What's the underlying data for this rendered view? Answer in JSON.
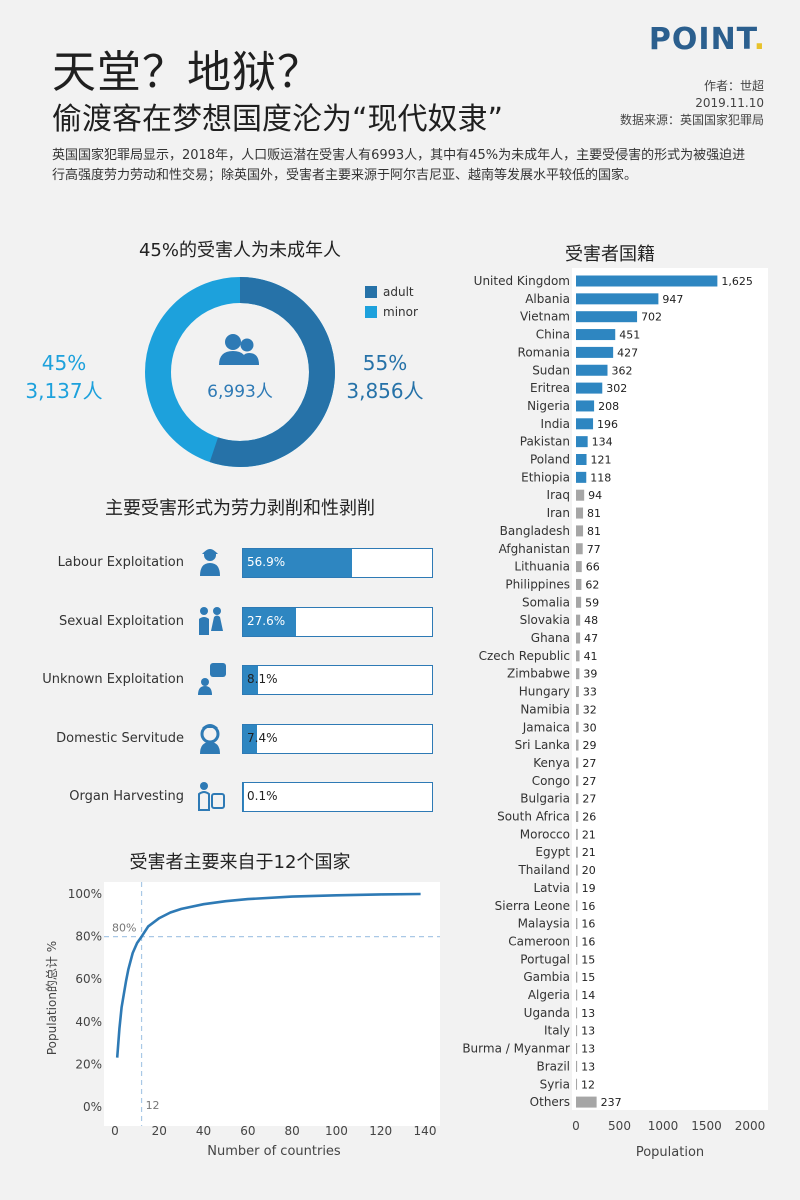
{
  "header": {
    "title": "天堂？地狱？",
    "subtitle": "偷渡客在梦想国度沦为“现代奴隶”",
    "logo": "POINT",
    "logo_dot": ".",
    "author": "作者：世超",
    "date": "2019.11.10",
    "source": "数据来源：英国国家犯罪局"
  },
  "intro": "英国国家犯罪局显示，2018年，人口贩运潜在受害人有6993人，其中有45%为未成年人，主要受侵害的形式为被强迫进行高强度劳力劳动和性交易；除英国外，受害者主要来源于阿尔吉尼亚、越南等发展水平较低的国家。",
  "donut": {
    "title": "45%的受害人为未成年人",
    "center_label": "6,993人",
    "minor_pct": "45%",
    "minor_count": "3,137人",
    "adult_pct": "55%",
    "adult_count": "3,856人",
    "legend": [
      {
        "label": "adult",
        "color": "#2672a8"
      },
      {
        "label": "minor",
        "color": "#1da1dc"
      }
    ]
  },
  "exploitation": {
    "title": "主要受害形式为劳力剥削和性剥削",
    "items": [
      {
        "label": "Labour Exploitation",
        "value": 56.9,
        "text": "56.9%",
        "icon": "worker-icon"
      },
      {
        "label": "Sexual Exploitation",
        "value": 27.6,
        "text": "27.6%",
        "icon": "couple-icon"
      },
      {
        "label": "Unknown Exploitation",
        "value": 8.1,
        "text": "8.1%",
        "icon": "question-person-icon"
      },
      {
        "label": "Domestic Servitude",
        "value": 7.4,
        "text": "7.4%",
        "icon": "maid-icon"
      },
      {
        "label": "Organ Harvesting",
        "value": 0.1,
        "text": "0.1%",
        "icon": "organ-icon"
      }
    ],
    "bar_color": "#2e86c1"
  },
  "chart_data": [
    {
      "type": "pie",
      "title": "45%的受害人为未成年人",
      "categories": [
        "adult",
        "minor"
      ],
      "values": [
        3856,
        3137
      ],
      "percent": [
        55,
        45
      ]
    },
    {
      "type": "bar",
      "title": "主要受害形式为劳力剥削和性剥削",
      "categories": [
        "Labour Exploitation",
        "Sexual Exploitation",
        "Unknown Exploitation",
        "Domestic Servitude",
        "Organ Harvesting"
      ],
      "values": [
        56.9,
        27.6,
        8.1,
        7.4,
        0.1
      ]
    },
    {
      "type": "line",
      "title": "受害者主要来自于12个国家",
      "xlabel": "Number of countries",
      "ylabel": "Population的总计 %",
      "xlim": [
        0,
        140
      ],
      "ylim": [
        0,
        100
      ],
      "x_ticks": [
        "0",
        "20",
        "40",
        "60",
        "80",
        "100",
        "120",
        "140"
      ],
      "y_ticks": [
        "0%",
        "20%",
        "40%",
        "60%",
        "80%",
        "100%"
      ],
      "reference": {
        "x": 12,
        "y": 80,
        "x_label": "12",
        "y_label": "80%"
      },
      "series": [
        {
          "x": [
            1,
            2,
            3,
            4,
            5,
            6,
            8,
            10,
            12,
            15,
            20,
            25,
            30,
            40,
            50,
            60,
            80,
            100,
            120,
            138
          ],
          "y": [
            23.2,
            36.7,
            46.8,
            53.2,
            59.3,
            64.5,
            72.3,
            77.0,
            80.0,
            84.8,
            88.7,
            91.3,
            93.0,
            95.2,
            96.6,
            97.6,
            98.8,
            99.4,
            99.8,
            100.0
          ]
        }
      ],
      "color": "#2e7ab5"
    },
    {
      "type": "bar",
      "orientation": "horizontal",
      "title": "受害者国籍",
      "xlabel": "Population",
      "xlim": [
        0,
        2000
      ],
      "x_ticks": [
        "0",
        "500",
        "1000",
        "1500",
        "2000"
      ],
      "categories": [
        "United Kingdom",
        "Albania",
        "Vietnam",
        "China",
        "Romania",
        "Sudan",
        "Eritrea",
        "Nigeria",
        "India",
        "Pakistan",
        "Poland",
        "Ethiopia",
        "Iraq",
        "Iran",
        "Bangladesh",
        "Afghanistan",
        "Lithuania",
        "Philippines",
        "Somalia",
        "Slovakia",
        "Ghana",
        "Czech Republic",
        "Zimbabwe",
        "Hungary",
        "Namibia",
        "Jamaica",
        "Sri Lanka",
        "Kenya",
        "Congo",
        "Bulgaria",
        "South Africa",
        "Morocco",
        "Egypt",
        "Thailand",
        "Latvia",
        "Sierra Leone",
        "Malaysia",
        "Cameroon",
        "Portugal",
        "Gambia",
        "Algeria",
        "Uganda",
        "Italy",
        "Burma / Myanmar",
        "Brazil",
        "Syria",
        "Others"
      ],
      "values": [
        1625,
        947,
        702,
        451,
        427,
        362,
        302,
        208,
        196,
        134,
        121,
        118,
        94,
        81,
        81,
        77,
        66,
        62,
        59,
        48,
        47,
        41,
        39,
        33,
        32,
        30,
        29,
        27,
        27,
        27,
        26,
        21,
        21,
        20,
        19,
        16,
        16,
        16,
        15,
        15,
        14,
        13,
        13,
        13,
        13,
        12,
        237
      ],
      "value_labels": [
        "1,625",
        "947",
        "702",
        "451",
        "427",
        "362",
        "302",
        "208",
        "196",
        "134",
        "121",
        "118",
        "94",
        "81",
        "81",
        "77",
        "66",
        "62",
        "59",
        "48",
        "47",
        "41",
        "39",
        "33",
        "32",
        "30",
        "29",
        "27",
        "27",
        "27",
        "26",
        "21",
        "21",
        "20",
        "19",
        "16",
        "16",
        "16",
        "15",
        "15",
        "14",
        "13",
        "13",
        "13",
        "13",
        "12",
        "237"
      ],
      "highlight_count": 12,
      "colors": {
        "highlight": "#2e86c1",
        "other": "#a6a6a6"
      }
    }
  ]
}
